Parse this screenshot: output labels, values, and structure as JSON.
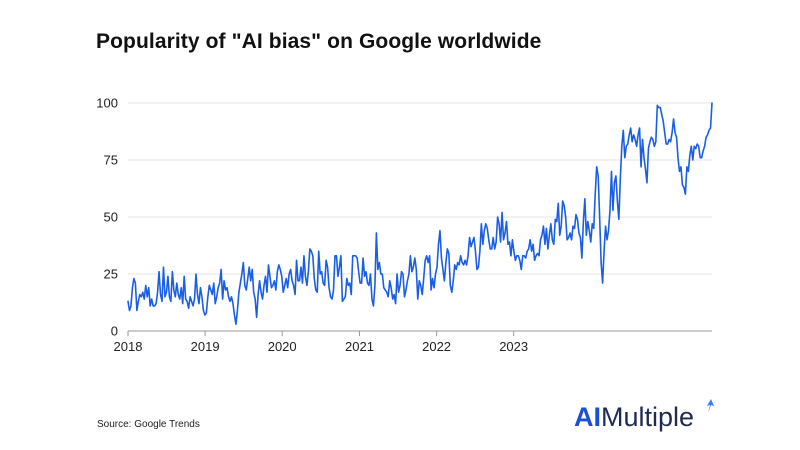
{
  "chart_data": {
    "type": "line",
    "title": "Popularity of \"AI bias\" on Google worldwide",
    "xlabel": "",
    "ylabel": "",
    "ylim": [
      0,
      100
    ],
    "y_ticks": [
      0,
      25,
      50,
      75,
      100
    ],
    "x_ticks": [
      {
        "label": "2018",
        "date": "2018-01-01"
      },
      {
        "label": "2019",
        "date": "2019-01-01"
      },
      {
        "label": "2020",
        "date": "2020-01-01"
      },
      {
        "label": "2021",
        "date": "2021-01-01"
      },
      {
        "label": "2022",
        "date": "2022-01-01"
      },
      {
        "label": "2023",
        "date": "2023-01-01"
      }
    ],
    "grid": "horizontal",
    "series": [
      {
        "color": "#1a5ee8",
        "start_date": "2018-01-01",
        "interval": "week",
        "values": [
          13,
          9,
          11,
          19,
          23,
          21,
          9,
          13,
          16,
          15,
          17,
          14,
          20,
          15,
          19,
          11,
          14,
          11,
          11,
          12,
          17,
          26,
          16,
          13,
          28,
          15,
          17,
          24,
          15,
          13,
          26,
          18,
          15,
          21,
          16,
          14,
          19,
          12,
          24,
          14,
          13,
          10,
          15,
          13,
          11,
          14,
          25,
          16,
          12,
          19,
          15,
          9,
          7,
          8,
          15,
          20,
          18,
          16,
          21,
          12,
          15,
          19,
          21,
          27,
          14,
          22,
          18,
          19,
          15,
          13,
          15,
          12,
          7,
          3,
          9,
          17,
          21,
          25,
          30,
          20,
          18,
          23,
          28,
          22,
          27,
          17,
          14,
          6,
          16,
          22,
          17,
          14,
          20,
          24,
          17,
          29,
          24,
          19,
          20,
          22,
          18,
          26,
          29,
          27,
          24,
          17,
          20,
          23,
          19,
          25,
          27,
          22,
          20,
          16,
          31,
          22,
          22,
          28,
          21,
          33,
          24,
          20,
          26,
          36,
          35,
          33,
          23,
          18,
          17,
          35,
          25,
          26,
          21,
          20,
          31,
          28,
          19,
          15,
          14,
          18,
          33,
          33,
          24,
          28,
          33,
          13,
          14,
          15,
          23,
          20,
          21,
          16,
          33,
          33,
          33,
          32,
          26,
          21,
          21,
          32,
          24,
          26,
          21,
          20,
          25,
          14,
          11,
          20,
          43,
          27,
          30,
          25,
          25,
          19,
          18,
          17,
          15,
          22,
          19,
          14,
          16,
          12,
          25,
          17,
          20,
          26,
          25,
          15,
          18,
          22,
          25,
          33,
          26,
          28,
          32,
          27,
          14,
          22,
          20,
          16,
          23,
          31,
          33,
          30,
          33,
          18,
          23,
          19,
          25,
          28,
          38,
          44,
          32,
          27,
          22,
          30,
          36,
          34,
          20,
          17,
          22,
          29,
          27,
          30,
          29,
          33,
          30,
          29,
          31,
          29,
          33,
          41,
          37,
          39,
          41,
          35,
          27,
          28,
          35,
          47,
          38,
          44,
          47,
          45,
          40,
          36,
          36,
          41,
          36,
          39,
          50,
          47,
          39,
          52,
          40,
          43,
          48,
          38,
          39,
          33,
          40,
          35,
          31,
          33,
          33,
          31,
          27,
          33,
          33,
          32,
          35,
          36,
          40,
          35,
          38,
          31,
          33,
          34,
          33,
          40,
          42,
          46,
          38,
          45,
          36,
          42,
          47,
          40,
          38,
          49,
          48,
          56,
          42,
          46,
          57,
          55,
          50,
          40,
          41,
          43,
          40,
          46,
          45,
          51,
          49,
          43,
          41,
          32,
          48,
          58,
          42,
          48,
          44,
          39,
          47,
          45,
          60,
          72,
          68,
          50,
          30,
          21,
          35,
          46,
          40,
          44,
          53,
          70,
          53,
          65,
          68,
          57,
          49,
          67,
          81,
          88,
          76,
          81,
          82,
          86,
          89,
          83,
          86,
          84,
          81,
          86,
          89,
          72,
          84,
          76,
          71,
          65,
          80,
          83,
          85,
          84,
          81,
          83,
          99,
          98,
          98,
          95,
          92,
          87,
          82,
          82,
          84,
          83,
          87,
          93,
          87,
          85,
          76,
          70,
          72,
          64,
          63,
          60,
          72,
          70,
          77,
          81,
          75,
          81,
          80,
          82,
          81,
          76,
          76,
          79,
          81,
          85,
          86,
          88,
          89,
          100
        ]
      }
    ]
  },
  "source": "Source: Google Trends",
  "brand": {
    "ai": "AI",
    "rest": "Multiple"
  },
  "colors": {
    "line": "#1a5ee8",
    "grid": "#e6e6e6",
    "axis": "#9a9a9a",
    "brand_ai": "#1b4fd8",
    "brand_text": "#1e2a52",
    "spark": "#3b7cff"
  }
}
